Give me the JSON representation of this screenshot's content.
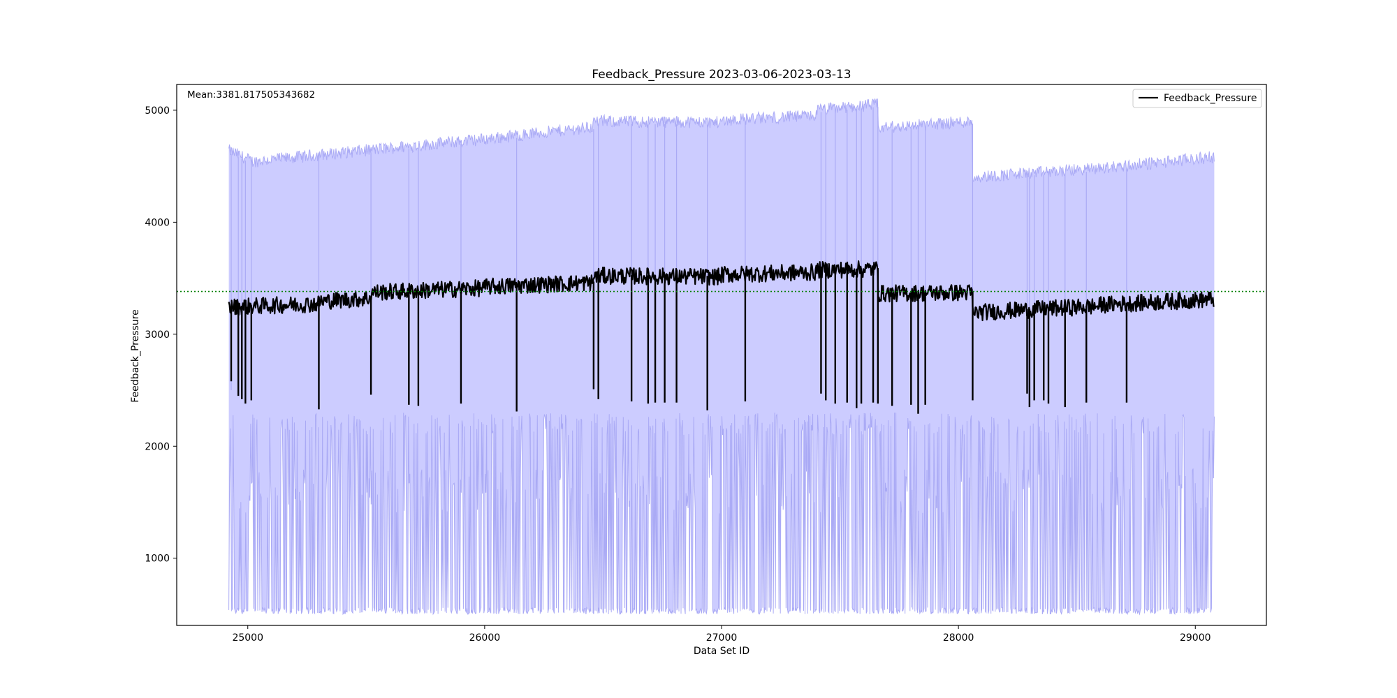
{
  "chart_data": {
    "type": "line",
    "title": "Feedback_Pressure 2023-03-06-2023-03-13",
    "xlabel": "Data Set ID",
    "ylabel": "Feedback_Pressure",
    "xlim": [
      24700,
      29300
    ],
    "ylim": [
      400,
      5230
    ],
    "x_ticks": [
      25000,
      26000,
      27000,
      28000,
      29000
    ],
    "y_ticks": [
      1000,
      2000,
      3000,
      4000,
      5000
    ],
    "x_tick_labels": [
      "25000",
      "26000",
      "27000",
      "28000",
      "29000"
    ],
    "y_tick_labels": [
      "1000",
      "2000",
      "3000",
      "4000",
      "5000"
    ],
    "mean_annotation": "Mean:3381.817505343682",
    "mean_value": 3381.817505343682,
    "legend": {
      "label": "Feedback_Pressure",
      "position": "top-right"
    },
    "x_range": [
      24920,
      29080
    ],
    "series": [
      {
        "name": "Feedback_Pressure",
        "color": "#000000",
        "baseline_segments": [
          {
            "x0": 24920,
            "x1": 25300,
            "y0": 3250,
            "y1": 3280
          },
          {
            "x0": 25300,
            "x1": 25520,
            "y0": 3300,
            "y1": 3330
          },
          {
            "x0": 25520,
            "x1": 26000,
            "y0": 3380,
            "y1": 3420
          },
          {
            "x0": 26000,
            "x1": 26460,
            "y0": 3430,
            "y1": 3470
          },
          {
            "x0": 26460,
            "x1": 27000,
            "y0": 3530,
            "y1": 3520
          },
          {
            "x0": 27000,
            "x1": 27400,
            "y0": 3540,
            "y1": 3560
          },
          {
            "x0": 27400,
            "x1": 27660,
            "y0": 3580,
            "y1": 3590
          },
          {
            "x0": 27660,
            "x1": 28060,
            "y0": 3370,
            "y1": 3380
          },
          {
            "x0": 28060,
            "x1": 28600,
            "y0": 3200,
            "y1": 3260
          },
          {
            "x0": 28600,
            "x1": 29080,
            "y0": 3270,
            "y1": 3320
          }
        ],
        "noise_amplitude": 75,
        "dips": [
          {
            "x": 24930,
            "y": 2580
          },
          {
            "x": 24960,
            "y": 2450
          },
          {
            "x": 24975,
            "y": 2420
          },
          {
            "x": 24990,
            "y": 2380
          },
          {
            "x": 25015,
            "y": 2410
          },
          {
            "x": 25300,
            "y": 2330
          },
          {
            "x": 25520,
            "y": 2460
          },
          {
            "x": 25680,
            "y": 2370
          },
          {
            "x": 25720,
            "y": 2360
          },
          {
            "x": 25900,
            "y": 2380
          },
          {
            "x": 26135,
            "y": 2310
          },
          {
            "x": 26460,
            "y": 2510
          },
          {
            "x": 26480,
            "y": 2420
          },
          {
            "x": 26620,
            "y": 2400
          },
          {
            "x": 26690,
            "y": 2380
          },
          {
            "x": 26720,
            "y": 2390
          },
          {
            "x": 26760,
            "y": 2390
          },
          {
            "x": 26810,
            "y": 2390
          },
          {
            "x": 26940,
            "y": 2320
          },
          {
            "x": 27100,
            "y": 2400
          },
          {
            "x": 27420,
            "y": 2470
          },
          {
            "x": 27440,
            "y": 2410
          },
          {
            "x": 27480,
            "y": 2380
          },
          {
            "x": 27530,
            "y": 2390
          },
          {
            "x": 27570,
            "y": 2340
          },
          {
            "x": 27590,
            "y": 2380
          },
          {
            "x": 27640,
            "y": 2390
          },
          {
            "x": 27660,
            "y": 2380
          },
          {
            "x": 27720,
            "y": 2360
          },
          {
            "x": 27800,
            "y": 2370
          },
          {
            "x": 27830,
            "y": 2290
          },
          {
            "x": 27860,
            "y": 2370
          },
          {
            "x": 28060,
            "y": 2410
          },
          {
            "x": 28290,
            "y": 2470
          },
          {
            "x": 28300,
            "y": 2350
          },
          {
            "x": 28320,
            "y": 2410
          },
          {
            "x": 28360,
            "y": 2410
          },
          {
            "x": 28380,
            "y": 2380
          },
          {
            "x": 28450,
            "y": 2350
          },
          {
            "x": 28540,
            "y": 2390
          },
          {
            "x": 28710,
            "y": 2390
          }
        ]
      }
    ],
    "band": {
      "color": "#aaaaf5",
      "upper_segments": [
        {
          "x0": 24920,
          "x1": 25020,
          "y0": 4620,
          "y1": 4520
        },
        {
          "x0": 25020,
          "x1": 25500,
          "y0": 4520,
          "y1": 4620
        },
        {
          "x0": 25500,
          "x1": 26000,
          "y0": 4620,
          "y1": 4720
        },
        {
          "x0": 26000,
          "x1": 26460,
          "y0": 4720,
          "y1": 4830
        },
        {
          "x0": 26460,
          "x1": 27000,
          "y0": 4880,
          "y1": 4870
        },
        {
          "x0": 27000,
          "x1": 27400,
          "y0": 4890,
          "y1": 4930
        },
        {
          "x0": 27400,
          "x1": 27660,
          "y0": 4980,
          "y1": 5030
        },
        {
          "x0": 27660,
          "x1": 28060,
          "y0": 4820,
          "y1": 4880
        },
        {
          "x0": 28060,
          "x1": 28600,
          "y0": 4380,
          "y1": 4460
        },
        {
          "x0": 28600,
          "x1": 29080,
          "y0": 4460,
          "y1": 4560
        }
      ],
      "lower_min": 500,
      "lower_max": 2300
    }
  }
}
